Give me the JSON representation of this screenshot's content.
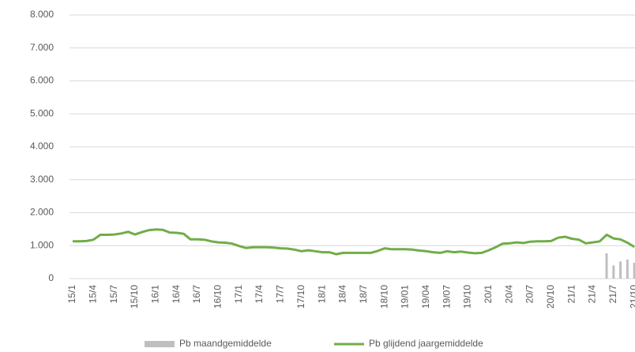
{
  "chart_data": {
    "type": "combo",
    "categories": [
      "15/1",
      null,
      null,
      "15/4",
      null,
      null,
      "15/7",
      null,
      null,
      "15/10",
      null,
      null,
      "16/1",
      null,
      null,
      "16/4",
      null,
      null,
      "16/7",
      null,
      null,
      "16/10",
      null,
      null,
      "17/1",
      null,
      null,
      "17/4",
      null,
      null,
      "17/7",
      null,
      null,
      "17/10",
      null,
      null,
      "18/1",
      null,
      null,
      "18/4",
      null,
      null,
      "18/7",
      null,
      null,
      "18/10",
      null,
      null,
      "19/01",
      null,
      null,
      "19/04",
      null,
      null,
      "19/07",
      null,
      null,
      "19/10",
      null,
      null,
      "20/1",
      null,
      null,
      "20/4",
      null,
      null,
      "20/7",
      null,
      null,
      "20/10",
      null,
      null,
      "21/1",
      null,
      null,
      "21/4",
      null,
      null,
      "21/7",
      null,
      null,
      "21/10"
    ],
    "series": [
      {
        "name": "Pb maandgemiddelde",
        "type": "bar",
        "color": "#bfbfbf",
        "values": [
          null,
          null,
          null,
          null,
          null,
          null,
          null,
          null,
          null,
          null,
          null,
          null,
          null,
          null,
          null,
          null,
          null,
          null,
          null,
          null,
          null,
          null,
          null,
          null,
          null,
          null,
          null,
          null,
          null,
          null,
          null,
          null,
          null,
          null,
          null,
          null,
          null,
          null,
          null,
          null,
          null,
          null,
          null,
          null,
          null,
          null,
          null,
          null,
          null,
          null,
          null,
          null,
          null,
          null,
          null,
          null,
          null,
          null,
          null,
          null,
          null,
          null,
          null,
          null,
          null,
          null,
          null,
          null,
          null,
          null,
          null,
          null,
          null,
          null,
          null,
          null,
          null,
          770,
          400,
          520,
          580,
          480
        ]
      },
      {
        "name": "Pb glijdend jaargemiddelde",
        "type": "line",
        "color": "#70ad47",
        "values": [
          1130,
          1130,
          1140,
          1180,
          1330,
          1330,
          1340,
          1370,
          1420,
          1340,
          1410,
          1470,
          1490,
          1480,
          1400,
          1390,
          1360,
          1190,
          1190,
          1180,
          1130,
          1100,
          1090,
          1060,
          990,
          930,
          950,
          950,
          950,
          940,
          920,
          910,
          880,
          830,
          860,
          830,
          800,
          800,
          740,
          780,
          780,
          780,
          780,
          780,
          840,
          920,
          890,
          890,
          890,
          880,
          850,
          830,
          800,
          780,
          830,
          800,
          820,
          790,
          770,
          780,
          860,
          950,
          1060,
          1070,
          1100,
          1080,
          1120,
          1130,
          1130,
          1140,
          1240,
          1270,
          1210,
          1180,
          1070,
          1100,
          1130,
          1330,
          1220,
          1190,
          1090,
          960
        ]
      }
    ],
    "ylim": [
      0,
      8000
    ],
    "yticks": [
      0,
      {
        "value": 1000,
        "label": "1.000"
      },
      {
        "value": 2000,
        "label": "2.000"
      },
      {
        "value": 3000,
        "label": "3.000"
      },
      {
        "value": 4000,
        "label": "4.000"
      },
      {
        "value": 5000,
        "label": "5.000"
      },
      {
        "value": 6000,
        "label": "6.000"
      },
      {
        "value": 7000,
        "label": "7.000"
      },
      {
        "value": 8000,
        "label": "8.000"
      }
    ],
    "grid": true,
    "legend": "bottom"
  }
}
